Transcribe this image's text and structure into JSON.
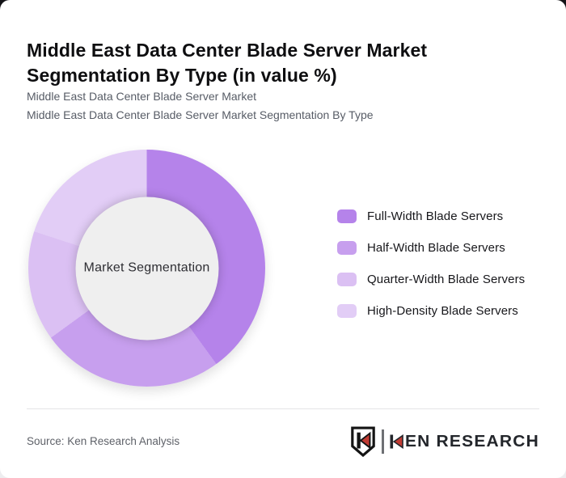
{
  "header": {
    "title": "Middle East Data Center Blade Server Market Segmentation By Type (in value %)",
    "subtitle_line1": "Middle East Data Center Blade Server Market",
    "subtitle_line2": "Middle East Data Center Blade Server Market Segmentation By Type"
  },
  "chart_data": {
    "type": "pie",
    "variant": "donut",
    "title": "Middle East Data Center Blade Server Market Segmentation By Type (in value %)",
    "unit": "value %",
    "center_label": "Market Segmentation",
    "start_angle_deg": 0,
    "direction": "clockwise",
    "legend_position": "right",
    "hole_color": "#efefef",
    "segments": [
      {
        "label": "Full-Width Blade Servers",
        "value": 40,
        "color": "#b583ea"
      },
      {
        "label": "Half-Width Blade Servers",
        "value": 25,
        "color": "#c79fee"
      },
      {
        "label": "Quarter-Width Blade Servers",
        "value": 15,
        "color": "#dbc0f3"
      },
      {
        "label": "High-Density Blade Servers",
        "value": 20,
        "color": "#e2cdf6"
      }
    ]
  },
  "footer": {
    "source": "Source: Ken Research Analysis",
    "brand": {
      "name": "KEN RESEARCH",
      "wordmark_suffix": "EN RESEARCH",
      "accent_color": "#c23b33",
      "ink_color": "#141414"
    }
  }
}
